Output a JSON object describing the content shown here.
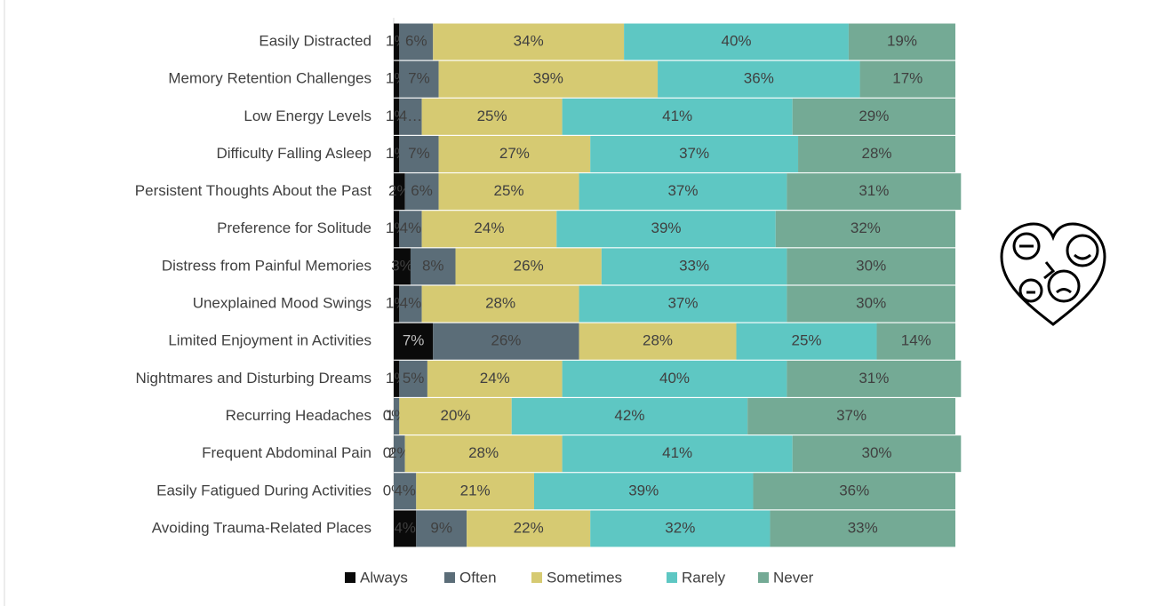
{
  "chart_data": {
    "type": "stacked-bar-horizontal",
    "categories": [
      "Easily Distracted",
      "Memory Retention Challenges",
      "Low Energy Levels",
      "Difficulty Falling Asleep",
      "Persistent Thoughts About the Past",
      "Preference for Solitude",
      "Distress from Painful Memories",
      "Unexplained Mood Swings",
      "Limited Enjoyment in Activities",
      "Nightmares and Disturbing Dreams",
      "Recurring Headaches",
      "Frequent Abdominal Pain",
      "Easily Fatigued During Activities",
      "Avoiding Trauma-Related Places"
    ],
    "xlim": [
      0,
      100
    ],
    "legend": "bottom",
    "series": [
      {
        "name": "Always",
        "color": "#0a0a0a",
        "values": [
          1,
          1,
          1,
          1,
          2,
          1,
          3,
          1,
          7,
          1,
          0,
          0,
          0,
          4
        ],
        "value_labels": [
          "1%",
          "1%",
          "1%",
          "1%",
          "2%",
          "1%",
          "3%",
          "1%",
          "7%",
          "1%",
          "0%",
          "0%",
          "0%",
          "4%"
        ]
      },
      {
        "name": "Often",
        "color": "#5b6d78",
        "values": [
          6,
          7,
          4,
          7,
          6,
          4,
          8,
          4,
          26,
          5,
          1,
          2,
          4,
          9
        ],
        "value_labels": [
          "6%",
          "7%",
          "4…",
          "7%",
          "6%",
          "4%",
          "8%",
          "4%",
          "26%",
          "5%",
          "1%",
          "2%",
          "4%",
          "9%"
        ]
      },
      {
        "name": "Sometimes",
        "color": "#d6ca72",
        "values": [
          34,
          39,
          25,
          27,
          25,
          24,
          26,
          28,
          28,
          24,
          20,
          28,
          21,
          22
        ],
        "value_labels": [
          "34%",
          "39%",
          "25%",
          "27%",
          "25%",
          "24%",
          "26%",
          "28%",
          "28%",
          "24%",
          "20%",
          "28%",
          "21%",
          "22%"
        ]
      },
      {
        "name": "Rarely",
        "color": "#5ec7c3",
        "values": [
          40,
          36,
          41,
          37,
          37,
          39,
          33,
          37,
          25,
          40,
          42,
          41,
          39,
          32
        ],
        "value_labels": [
          "40%",
          "36%",
          "41%",
          "37%",
          "37%",
          "39%",
          "33%",
          "37%",
          "25%",
          "40%",
          "42%",
          "41%",
          "39%",
          "32%"
        ]
      },
      {
        "name": "Never",
        "color": "#74aa95",
        "values": [
          19,
          17,
          29,
          28,
          31,
          32,
          30,
          30,
          14,
          31,
          37,
          30,
          36,
          33
        ],
        "value_labels": [
          "19%",
          "17%",
          "29%",
          "28%",
          "31%",
          "32%",
          "30%",
          "30%",
          "14%",
          "31%",
          "37%",
          "30%",
          "36%",
          "33%"
        ]
      }
    ]
  }
}
